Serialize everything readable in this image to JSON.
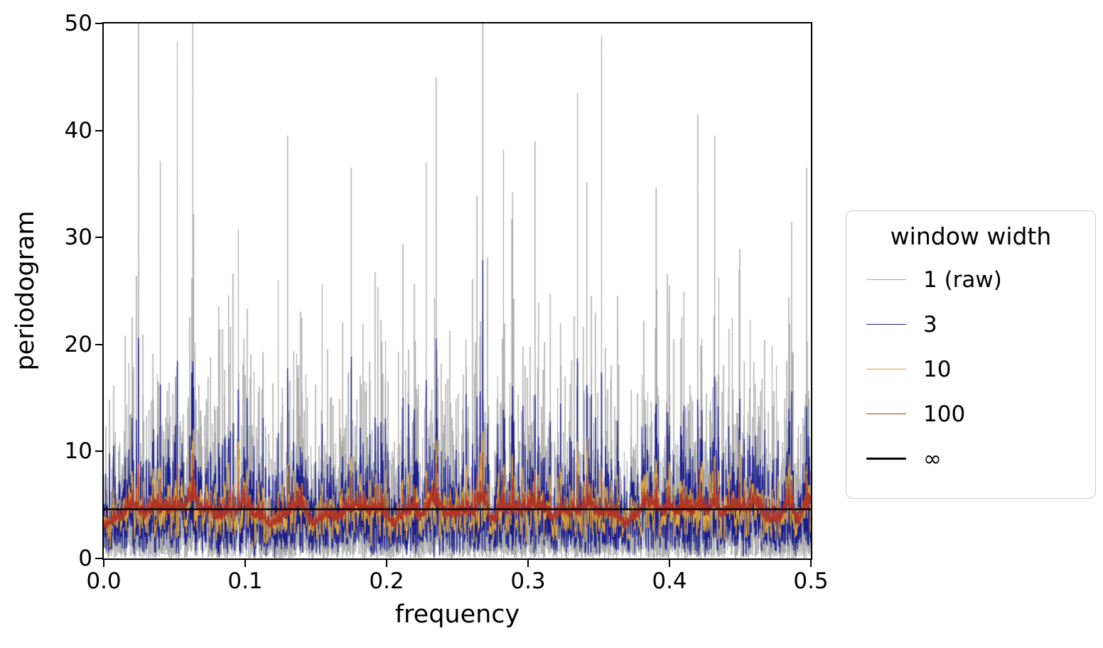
{
  "chart_data": {
    "type": "line",
    "title": "",
    "xlabel": "frequency",
    "ylabel": "periodogram",
    "xlim": [
      0.0,
      0.5
    ],
    "ylim": [
      0,
      50
    ],
    "grid": false,
    "xticks": [
      {
        "value": 0.0,
        "label": "0.0"
      },
      {
        "value": 0.1,
        "label": "0.1"
      },
      {
        "value": 0.2,
        "label": "0.2"
      },
      {
        "value": 0.3,
        "label": "0.3"
      },
      {
        "value": 0.4,
        "label": "0.4"
      },
      {
        "value": 0.5,
        "label": "0.5"
      }
    ],
    "yticks": [
      {
        "value": 0,
        "label": "0"
      },
      {
        "value": 10,
        "label": "10"
      },
      {
        "value": 20,
        "label": "20"
      },
      {
        "value": 30,
        "label": "30"
      },
      {
        "value": 40,
        "label": "40"
      },
      {
        "value": 50,
        "label": "50"
      }
    ],
    "legend": {
      "title": "window width",
      "position": "right"
    },
    "description": "Raw periodogram of white noise and Daniell-smoothed versions with increasing window widths; the flat black line is the theoretical spectrum level.",
    "n_points": 6000,
    "seed": 1337,
    "noise_mean": 4.7,
    "theoretical_level": 4.6,
    "series": [
      {
        "name": "1 (raw)",
        "window": 1,
        "color": "#a7a7a7",
        "linewidth": 1.0,
        "approx_range": [
          0,
          50
        ]
      },
      {
        "name": "3",
        "window": 3,
        "color": "#1a1d8f",
        "linewidth": 1.3,
        "approx_range": [
          0.5,
          22.5
        ]
      },
      {
        "name": "10",
        "window": 10,
        "color": "#e1a636",
        "linewidth": 1.3,
        "approx_range": [
          1.5,
          12.5
        ]
      },
      {
        "name": "100",
        "window": 100,
        "color": "#b13526",
        "linewidth": 1.3,
        "approx_range": [
          3.2,
          5.5
        ]
      },
      {
        "name": "∞",
        "window": "infinity",
        "constant": 4.6,
        "color": "#000000",
        "linewidth": 2.6,
        "approx_range": [
          4.6,
          4.6
        ]
      }
    ],
    "peak_spikes": [
      [
        0.052,
        48.3
      ],
      [
        0.063,
        50.0
      ],
      [
        0.13,
        39.5
      ],
      [
        0.175,
        36.5
      ],
      [
        0.235,
        45.0
      ],
      [
        0.268,
        50.0
      ],
      [
        0.305,
        39.0
      ],
      [
        0.335,
        43.5
      ],
      [
        0.352,
        48.8
      ],
      [
        0.42,
        41.5
      ],
      [
        0.432,
        39.5
      ],
      [
        0.497,
        36.5
      ]
    ]
  }
}
